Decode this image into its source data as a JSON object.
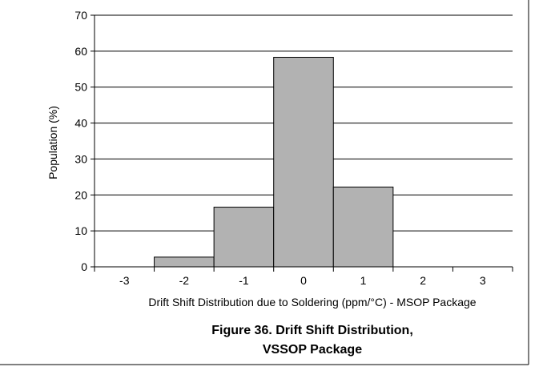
{
  "chart_data": {
    "type": "bar",
    "categories": [
      "-3",
      "-2",
      "-1",
      "0",
      "1",
      "2",
      "3"
    ],
    "values": [
      0,
      2.7,
      16.6,
      58.3,
      22.2,
      0,
      0
    ],
    "xlabel": "Drift Shift Distribution due to Soldering (ppm/°C) - MSOP Package",
    "ylabel": "Population (%)",
    "ylim": [
      0,
      70
    ],
    "yticks": [
      0,
      10,
      20,
      30,
      40,
      50,
      60,
      70
    ],
    "grid": true,
    "bar_color": "#B2B2B2",
    "caption_line1": "Figure 36. Drift Shift Distribution,",
    "caption_line2": "VSSOP Package"
  }
}
